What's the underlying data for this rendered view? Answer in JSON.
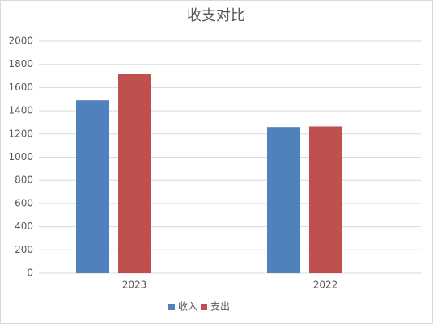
{
  "chart_data": {
    "type": "bar",
    "title": "收支对比",
    "categories": [
      "2023",
      "2022"
    ],
    "series": [
      {
        "name": "收入",
        "color": "#4f81bd",
        "values": [
          1490,
          1260
        ]
      },
      {
        "name": "支出",
        "color": "#c0504d",
        "values": [
          1720,
          1265
        ]
      }
    ],
    "ylim": [
      0,
      2000
    ],
    "yticks": [
      0,
      200,
      400,
      600,
      800,
      1000,
      1200,
      1400,
      1600,
      1800,
      2000
    ],
    "grid": true,
    "legend": "bottom"
  }
}
